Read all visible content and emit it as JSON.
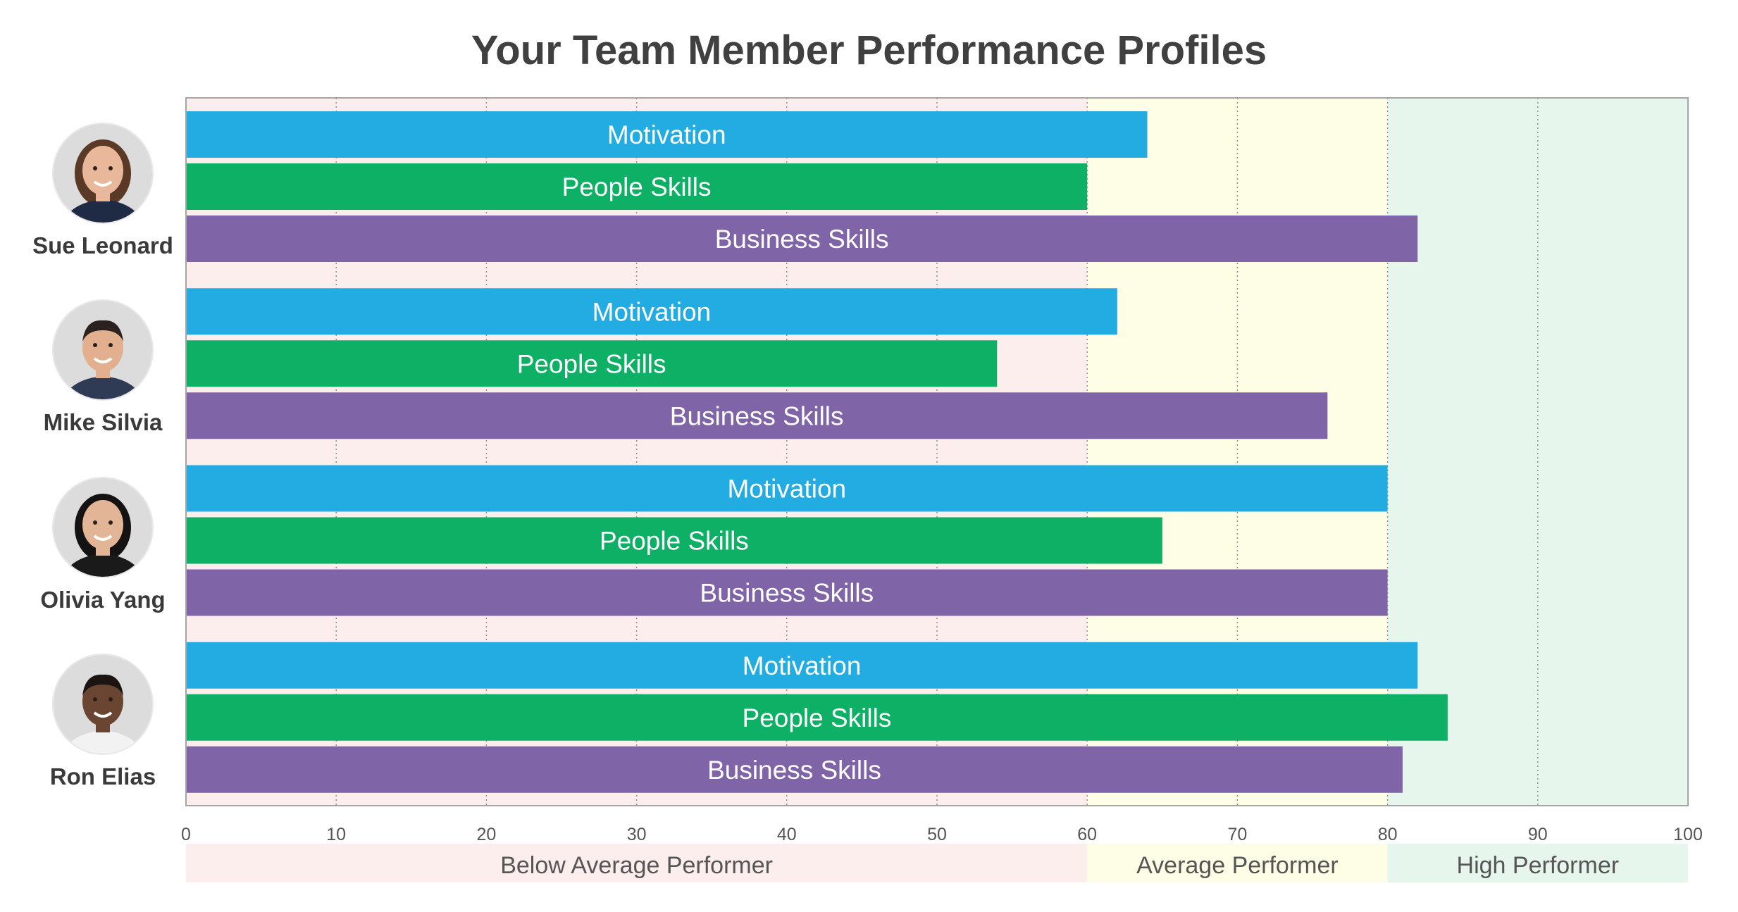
{
  "chart_data": {
    "type": "bar",
    "orientation": "horizontal",
    "title": "Your Team Member Performance Profiles",
    "categories": [
      "Sue Leonard",
      "Mike Silvia",
      "Olivia Yang",
      "Ron Elias"
    ],
    "series": [
      {
        "name": "Motivation",
        "color": "#22ACE2",
        "values": [
          64,
          62,
          80,
          82
        ]
      },
      {
        "name": "People Skills",
        "color": "#0DB065",
        "values": [
          60,
          54,
          65,
          84
        ]
      },
      {
        "name": "Business Skills",
        "color": "#8064A8",
        "values": [
          82,
          76,
          80,
          81
        ]
      }
    ],
    "xlim": [
      0,
      100
    ],
    "xticks": [
      0,
      10,
      20,
      30,
      40,
      50,
      60,
      70,
      80,
      90,
      100
    ],
    "grid": "vertical-dotted",
    "bands": [
      {
        "label": "Below Average Performer",
        "from": 0,
        "to": 60,
        "color": "#FDEEEE"
      },
      {
        "label": "Average Performer",
        "from": 60,
        "to": 80,
        "color": "#FEFEE6"
      },
      {
        "label": "High Performer",
        "from": 80,
        "to": 100,
        "color": "#E6F6EC"
      }
    ]
  },
  "people": [
    {
      "name": "Sue Leonard",
      "avatar_icon": "woman-portrait-icon",
      "skin": "#e9b89a",
      "hair": "#5a3a26",
      "shirt": "#1f2a44"
    },
    {
      "name": "Mike Silvia",
      "avatar_icon": "man-portrait-icon",
      "skin": "#e3b08f",
      "hair": "#2b2220",
      "shirt": "#2f3a55"
    },
    {
      "name": "Olivia Yang",
      "avatar_icon": "woman-portrait-icon",
      "skin": "#e2b597",
      "hair": "#141212",
      "shirt": "#1a1a1a"
    },
    {
      "name": "Ron Elias",
      "avatar_icon": "man-portrait-icon",
      "skin": "#6a4531",
      "hair": "#1c1412",
      "shirt": "#f2f2f2"
    }
  ]
}
